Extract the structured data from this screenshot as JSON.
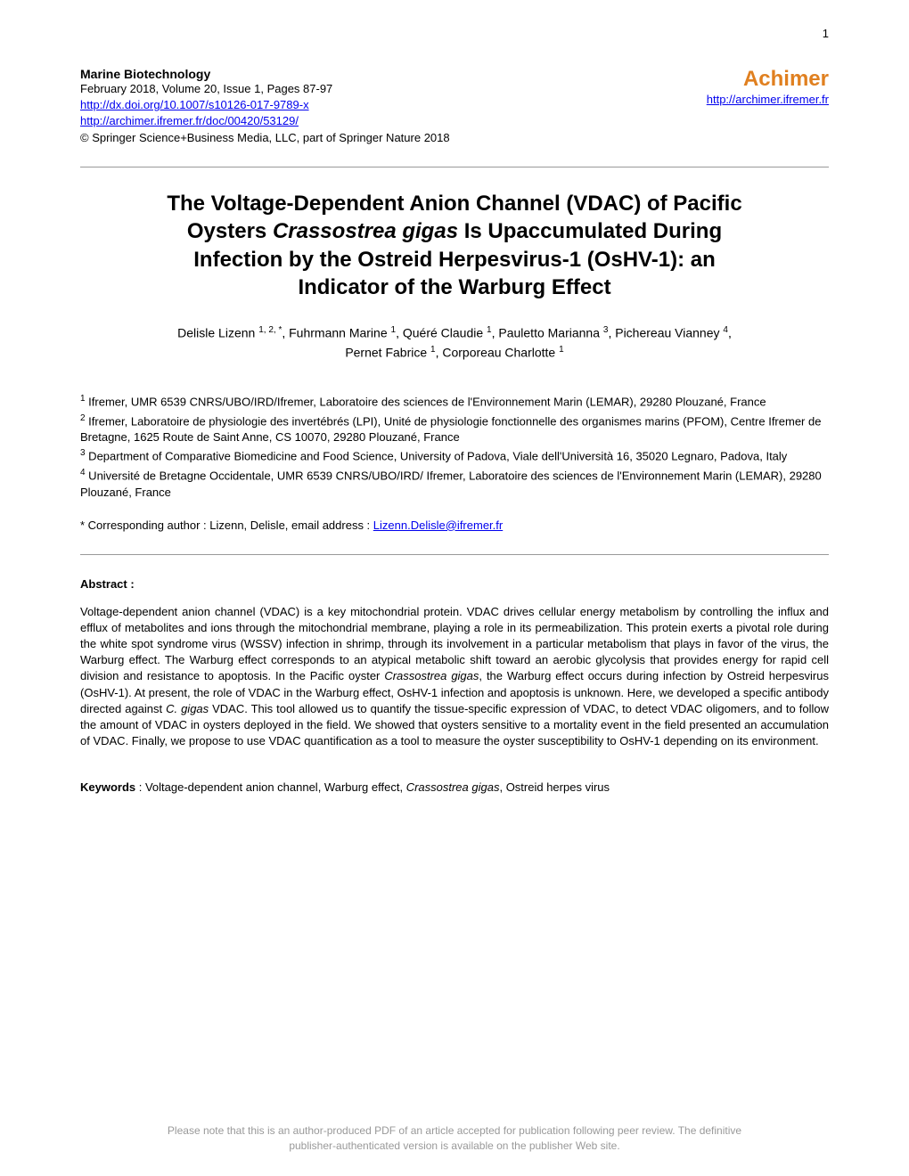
{
  "page_number": "1",
  "header": {
    "journal_name": "Marine Biotechnology",
    "journal_info": "February 2018, Volume 20, Issue 1, Pages 87-97",
    "doi_link": "http://dx.doi.org/10.1007/s10126-017-9789-x",
    "archimer_doc_link": "http://archimer.ifremer.fr/doc/00420/53129/",
    "copyright": "© Springer Science+Business Media, LLC, part of Springer Nature 2018",
    "archimer_title": "Achimer",
    "archimer_link": "http://archimer.ifremer.fr"
  },
  "title": {
    "line1": "The Voltage-Dependent Anion Channel (VDAC) of Pacific",
    "line2_pre": "Oysters ",
    "line2_italic": "Crassostrea gigas",
    "line2_post": " Is Upaccumulated During",
    "line3": "Infection by the Ostreid Herpesvirus-1 (OsHV-1): an",
    "line4": "Indicator of the Warburg Effect"
  },
  "authors": {
    "line1": "Delisle Lizenn ",
    "sup1": "1, 2, *",
    "line1b": ", Fuhrmann Marine ",
    "sup2": "1",
    "line1c": ", Quéré Claudie ",
    "sup3": "1",
    "line1d": ", Pauletto Marianna ",
    "sup4": "3",
    "line1e": ", Pichereau Vianney ",
    "sup5": "4",
    "line1f": ",",
    "line2": "Pernet Fabrice ",
    "sup6": "1",
    "line2b": ", Corporeau Charlotte ",
    "sup7": "1"
  },
  "affiliations": {
    "aff1_sup": "1",
    "aff1": " Ifremer, UMR 6539 CNRS/UBO/IRD/Ifremer, Laboratoire des sciences de l'Environnement Marin (LEMAR), 29280 Plouzané, France",
    "aff2_sup": "2",
    "aff2": " Ifremer, Laboratoire de physiologie des invertébrés (LPI), Unité de physiologie fonctionnelle des organismes marins (PFOM), Centre Ifremer de Bretagne, 1625 Route de Saint Anne, CS 10070, 29280 Plouzané, France",
    "aff3_sup": "3",
    "aff3": " Department of Comparative Biomedicine and Food Science, University of Padova, Viale dell'Università 16, 35020 Legnaro, Padova, Italy",
    "aff4_sup": "4",
    "aff4": " Université de Bretagne Occidentale, UMR 6539 CNRS/UBO/IRD/ Ifremer, Laboratoire des sciences de l'Environnement Marin (LEMAR), 29280 Plouzané, France"
  },
  "corresponding": {
    "text": "* Corresponding author : Lizenn, Delisle, email address : ",
    "email": "Lizenn.Delisle@ifremer.fr"
  },
  "abstract": {
    "label": "Abstract :",
    "text_pre": "Voltage-dependent anion channel (VDAC) is a key mitochondrial protein. VDAC drives cellular energy metabolism by controlling the influx and efflux of metabolites and ions through the mitochondrial membrane, playing a role in its permeabilization. This protein exerts a pivotal role during the white spot syndrome virus (WSSV) infection in shrimp, through its involvement in a particular metabolism that plays in favor of the virus, the Warburg effect. The Warburg effect corresponds to an atypical metabolic shift toward an aerobic glycolysis that provides energy for rapid cell division and resistance to apoptosis. In the Pacific oyster ",
    "text_italic1": "Crassostrea gigas",
    "text_mid": ", the Warburg effect occurs during infection by Ostreid herpesvirus (OsHV-1). At present, the role of VDAC in the Warburg effect, OsHV-1 infection and apoptosis is unknown. Here, we developed a specific antibody directed against ",
    "text_italic2": "C. gigas",
    "text_post": " VDAC. This tool allowed us to quantify the tissue-specific expression of VDAC, to detect VDAC oligomers, and to follow the amount of VDAC in oysters deployed in the field. We showed that oysters sensitive to a mortality event in the field presented an accumulation of VDAC. Finally, we propose to use VDAC quantification as a tool to measure the oyster susceptibility to OsHV-1 depending on its environment."
  },
  "keywords": {
    "label": "Keywords",
    "text_pre": " : Voltage-dependent anion channel, Warburg effect, ",
    "text_italic": "Crassostrea gigas",
    "text_post": ", Ostreid herpes virus"
  },
  "footer": {
    "line1": "Please note that this is an author-produced PDF of an article accepted for publication following peer review. The definitive",
    "line2": "publisher-authenticated version is available on the publisher Web site."
  }
}
